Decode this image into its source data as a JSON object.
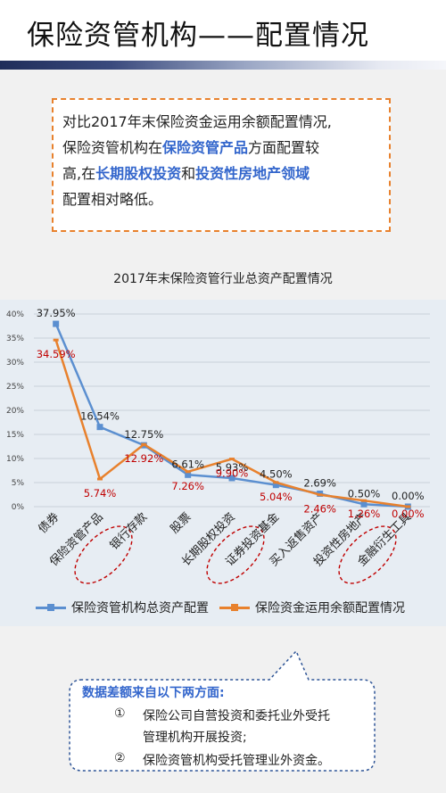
{
  "page": {
    "title": "保险资管机构——配置情况"
  },
  "summary": {
    "line1": "对比2017年末保险资金运用余额配置情况,",
    "line2_pre": "保险资管机构在",
    "line2_hl": "保险资管产品",
    "line2_post": "方面配置较",
    "line3_pre": "高,在",
    "line3_hl1": "长期股权投资",
    "line3_mid": "和",
    "line3_hl2": "投资性房地产领域",
    "line4": "配置相对略低。"
  },
  "chart_data": {
    "type": "line",
    "title": "2017年末保险资管行业总资产配置情况",
    "categories": [
      "债券",
      "保险资管产品",
      "银行存款",
      "股票",
      "长期股权投资",
      "证券投资基金",
      "买入返售资产",
      "投资性房地产",
      "金融衍生工具"
    ],
    "series": [
      {
        "name": "保险资管机构总资产配置",
        "color": "#5b8fd0",
        "values": [
          37.95,
          16.54,
          12.75,
          6.61,
          5.93,
          4.5,
          2.69,
          0.5,
          0.0
        ],
        "labels": [
          "37.95%",
          "16.54%",
          "12.75%",
          "6.61%",
          "5.93%",
          "4.50%",
          "2.69%",
          "0.50%",
          "0.00%"
        ]
      },
      {
        "name": "保险资金运用余额配置情况",
        "color": "#e8812d",
        "values": [
          34.59,
          5.74,
          12.92,
          7.26,
          9.9,
          5.04,
          2.46,
          1.26,
          0.0
        ],
        "labels": [
          "34.59%",
          "5.74%",
          "12.92%",
          "7.26%",
          "9.90%",
          "5.04%",
          "2.46%",
          "1.26%",
          "0.00%"
        ]
      }
    ],
    "yticks": [
      "0%",
      "5%",
      "10%",
      "15%",
      "20%",
      "25%",
      "30%",
      "35%",
      "40%"
    ],
    "ylim": [
      0,
      40
    ],
    "grid": true,
    "legend_position": "bottom",
    "highlighted_categories": [
      "保险资管产品",
      "长期股权投资",
      "投资性房地产"
    ]
  },
  "note": {
    "title": "数据差额来自以下两方面:",
    "item1_num": "①",
    "item1_line1": "保险公司自营投资和委托业外受托",
    "item1_line2": "管理机构开展投资;",
    "item2_num": "②",
    "item2_text": "保险资管机构受托管理业外资金。"
  }
}
